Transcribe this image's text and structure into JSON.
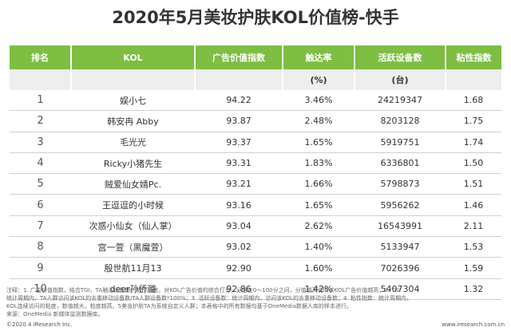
{
  "title": "2020年5月美妆护肤KOL价值榜-快手",
  "table": {
    "headers": [
      "排名",
      "KOL",
      "广告价值指数",
      "触达率",
      "活跃设备数",
      "粘性指数"
    ],
    "units": [
      "",
      "",
      "",
      "(%)",
      "(台)",
      ""
    ],
    "rows": [
      [
        "1",
        "娱小七",
        "94.22",
        "3.46%",
        "24219347",
        "1.68"
      ],
      [
        "2",
        "韩安冉 Abby",
        "93.87",
        "2.48%",
        "8203128",
        "1.75"
      ],
      [
        "3",
        "毛光光",
        "93.37",
        "1.65%",
        "5919751",
        "1.74"
      ],
      [
        "4",
        "Ricky小猪先生",
        "93.31",
        "1.83%",
        "6336801",
        "1.50"
      ],
      [
        "5",
        "贼爱仙女婧Pc.",
        "93.21",
        "1.66%",
        "5798873",
        "1.51"
      ],
      [
        "6",
        "王逗逗的小时候",
        "93.16",
        "1.65%",
        "5956262",
        "1.46"
      ],
      [
        "7",
        "次惑小仙女（仙人掌）",
        "93.04",
        "2.62%",
        "16543991",
        "2.11"
      ],
      [
        "8",
        "宫一萱（黑魔萱）",
        "93.02",
        "1.40%",
        "5133947",
        "1.53"
      ],
      [
        "9",
        "殷世航11月13",
        "92.90",
        "1.60%",
        "7026396",
        "1.59"
      ],
      [
        "10",
        "deer孙侨潞",
        "92.86",
        "1.42%",
        "5407304",
        "1.32"
      ]
    ]
  },
  "notes": [
    "注释：1. 广告价值指数，结合TGI、TA触达设备数、粘性指数，对KOL广告价值的综合打分，分值在0～100分之间，分值越高说明该KOL广告价值越高；2. TGI",
    "统计周期内，TA人群访问该KOL的去重移动设备数/TA人群设备数*100%；3. 活跃设备数：统计周期内，访问该KOL的去重移动设备数；4. 粘性指数：统计周期内，",
    "KOL连续访问的粘度，数值越大，粘度越高。5美妆护肤TA为系统自定义人群；本表格中的所有数据均基于OneMedia数据人库的样本进行。",
    "来源：OneMedia 新媒体监测数据库。"
  ],
  "footer": {
    "copyright": "©2020.4 iResearch Inc.",
    "site": "www.iresearch.com.cn"
  }
}
